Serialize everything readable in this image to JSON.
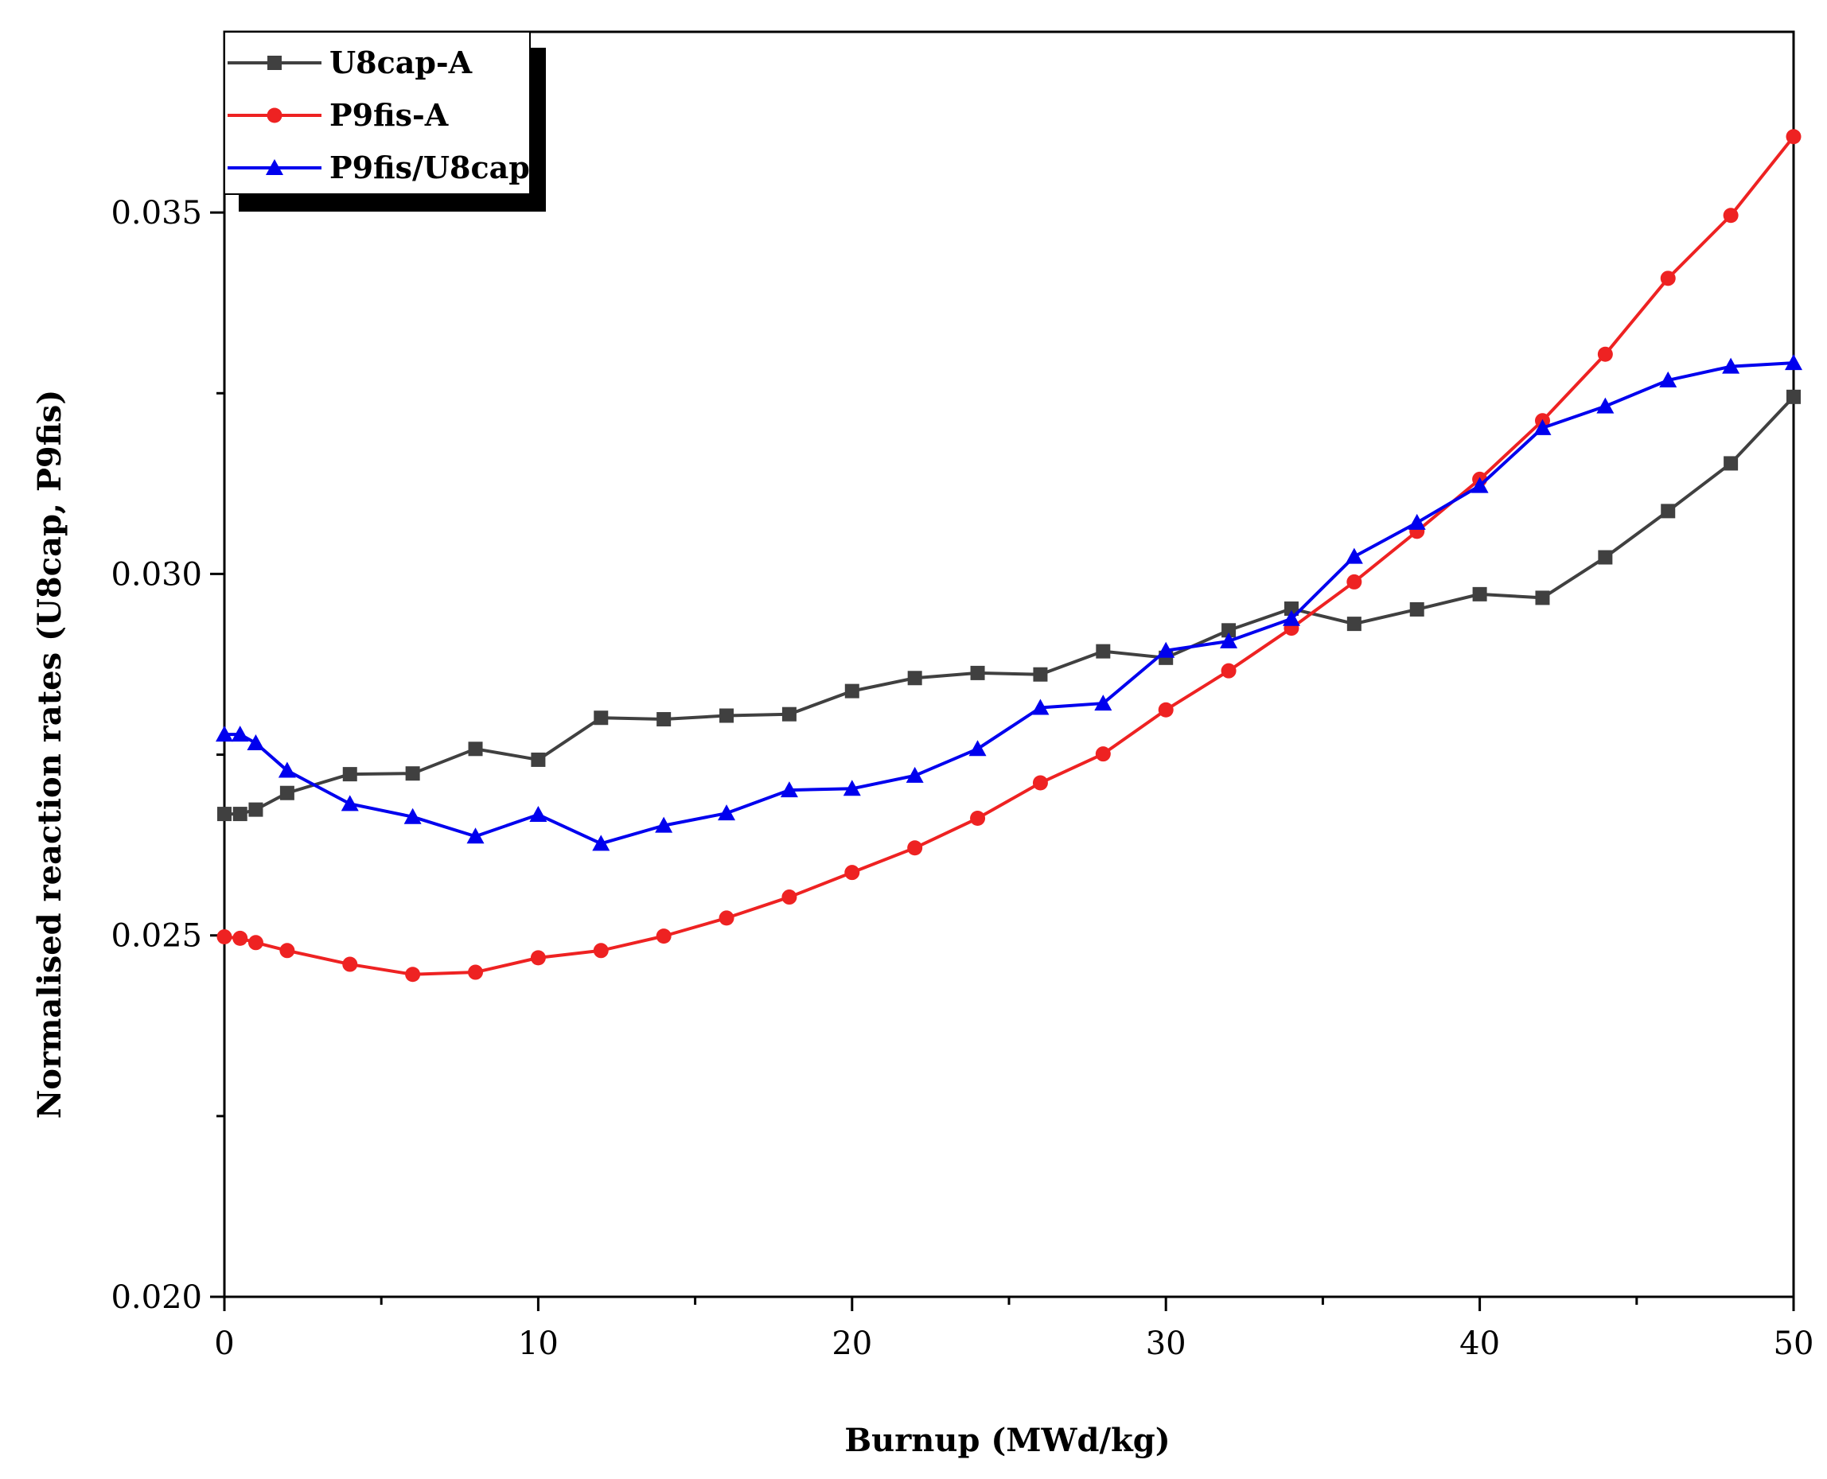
{
  "chart_data": {
    "type": "line",
    "title": "",
    "xlabel": "Burnup (MWd/kg)",
    "ylabel": "Normalised reaction rates (U8cap, P9fis)",
    "xlim": [
      0,
      50
    ],
    "ylim": [
      0.02,
      0.0375
    ],
    "xticks": [
      0,
      10,
      20,
      30,
      40,
      50
    ],
    "xtick_labels": [
      "0",
      "10",
      "20",
      "30",
      "40",
      "50"
    ],
    "yticks": [
      0.02,
      0.025,
      0.03,
      0.035
    ],
    "ytick_labels": [
      "0.020",
      "0.025",
      "0.030",
      "0.035"
    ],
    "grid": false,
    "legend_position": "top-left",
    "x": [
      0,
      0.5,
      1,
      2,
      4,
      6,
      8,
      10,
      12,
      14,
      16,
      18,
      20,
      22,
      24,
      26,
      28,
      30,
      32,
      34,
      36,
      38,
      40,
      42,
      44,
      46,
      48,
      50
    ],
    "series": [
      {
        "name": "U8cap-A",
        "color": "#404040",
        "marker": "square",
        "values": [
          0.02668,
          0.02668,
          0.02674,
          0.02697,
          0.02723,
          0.02724,
          0.02758,
          0.02743,
          0.02801,
          0.02799,
          0.02804,
          0.02806,
          0.02838,
          0.02856,
          0.02863,
          0.02861,
          0.02893,
          0.02884,
          0.02922,
          0.02952,
          0.02931,
          0.02951,
          0.02972,
          0.02967,
          0.03023,
          0.03087,
          0.03153,
          0.03245
        ]
      },
      {
        "name": "P9fis-A",
        "color": "#ee2222",
        "marker": "circle",
        "values": [
          0.02498,
          0.02496,
          0.0249,
          0.02479,
          0.0246,
          0.02446,
          0.02449,
          0.02469,
          0.02479,
          0.02499,
          0.02524,
          0.02553,
          0.02587,
          0.02621,
          0.02662,
          0.02711,
          0.02751,
          0.02812,
          0.02866,
          0.02925,
          0.02989,
          0.03059,
          0.03131,
          0.03212,
          0.03304,
          0.03409,
          0.03496,
          0.03605
        ]
      },
      {
        "name": "P9fis/U8cap",
        "color": "#0000ee",
        "marker": "triangle",
        "values": [
          0.02778,
          0.02778,
          0.02766,
          0.02728,
          0.02682,
          0.02664,
          0.02637,
          0.02667,
          0.02627,
          0.02652,
          0.02669,
          0.02701,
          0.02703,
          0.02721,
          0.02758,
          0.02815,
          0.02821,
          0.02894,
          0.02907,
          0.02938,
          0.03024,
          0.03071,
          0.03122,
          0.03202,
          0.03232,
          0.03268,
          0.03287,
          0.03292
        ]
      }
    ]
  }
}
